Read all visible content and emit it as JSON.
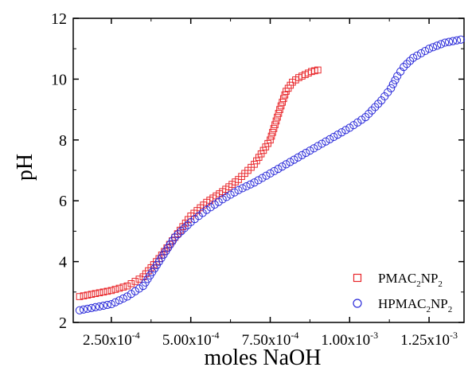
{
  "chart_data": {
    "type": "scatter",
    "xlabel": "moles NaOH",
    "ylabel": "pH",
    "xlim": [
      0.00013,
      0.00136
    ],
    "ylim": [
      2,
      12
    ],
    "grid": false,
    "legend_position": "bottom-right",
    "y_ticks": [
      "2",
      "4",
      "6",
      "8",
      "10",
      "12"
    ],
    "x_ticks": [
      {
        "value": 0.00025,
        "mantissa": "2.50x10",
        "exp": "-4"
      },
      {
        "value": 0.0005,
        "mantissa": "5.00x10",
        "exp": "-4"
      },
      {
        "value": 0.00075,
        "mantissa": "7.50x10",
        "exp": "-4"
      },
      {
        "value": 0.001,
        "mantissa": "1.00x10",
        "exp": "-3"
      },
      {
        "value": 0.00125,
        "mantissa": "1.25x10",
        "exp": "-3"
      }
    ],
    "series": [
      {
        "name": "PMAC2NP2",
        "legend_main": "PMAC",
        "legend_sub1": "2",
        "legend_mid": "NP",
        "legend_sub2": "2",
        "marker": "square",
        "color": "#e8262a",
        "x": [
          0.00015,
          0.0002,
          0.00025,
          0.0003,
          0.00035,
          0.0004,
          0.00045,
          0.0005,
          0.00055,
          0.0006,
          0.00065,
          0.0007,
          0.00075,
          0.00078,
          0.0008,
          0.00082,
          0.00084,
          0.00086,
          0.00088,
          0.0009
        ],
        "y": [
          2.85,
          2.95,
          3.05,
          3.2,
          3.5,
          4.1,
          4.8,
          5.5,
          5.95,
          6.3,
          6.7,
          7.2,
          8.0,
          9.0,
          9.6,
          9.9,
          10.05,
          10.15,
          10.25,
          10.3
        ]
      },
      {
        "name": "HPMAC2NP2",
        "legend_main": "HPMAC",
        "legend_sub1": "2",
        "legend_mid": "NP",
        "legend_sub2": "2",
        "marker": "circle",
        "color": "#2a2ad9",
        "x": [
          0.00015,
          0.0002,
          0.00025,
          0.0003,
          0.00035,
          0.0004,
          0.00045,
          0.0005,
          0.00055,
          0.0006,
          0.00065,
          0.0007,
          0.00075,
          0.0008,
          0.00085,
          0.0009,
          0.00095,
          0.001,
          0.00105,
          0.0011,
          0.00113,
          0.00115,
          0.00117,
          0.0012,
          0.00125,
          0.0013,
          0.00135
        ],
        "y": [
          2.4,
          2.5,
          2.6,
          2.85,
          3.2,
          4.0,
          4.8,
          5.3,
          5.7,
          6.05,
          6.35,
          6.6,
          6.9,
          7.2,
          7.5,
          7.8,
          8.1,
          8.4,
          8.75,
          9.3,
          9.7,
          10.1,
          10.4,
          10.7,
          11.0,
          11.2,
          11.3
        ]
      }
    ]
  }
}
